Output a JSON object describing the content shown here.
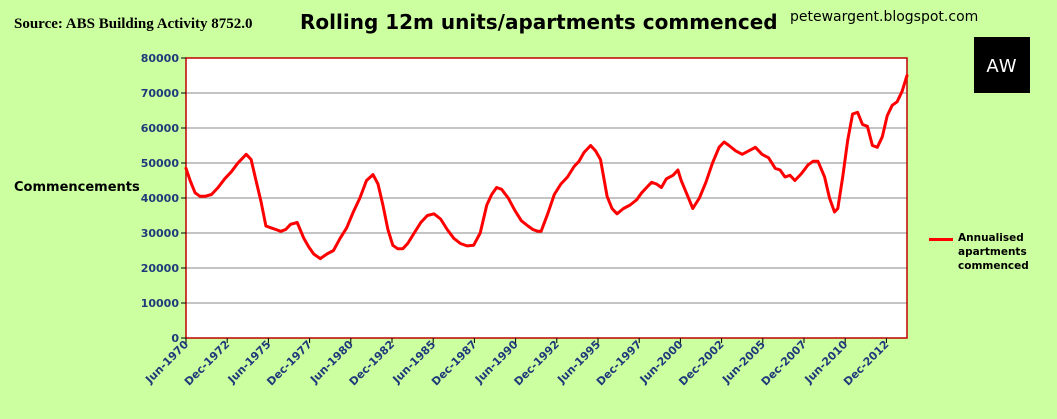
{
  "header": {
    "source": "Source: ABS Building Activity 8752.0",
    "title": "Rolling 12m units/apartments commenced",
    "blog": "petewargent.blogspot.com",
    "logo_text": "AW"
  },
  "colors": {
    "background": "#ccffa0",
    "plot_area": "#ffffff",
    "series": "#ff0000",
    "frame": "#c00000",
    "tick_text": "#1f3a7a"
  },
  "chart_data": {
    "type": "line",
    "title": "Rolling 12m units/apartments commenced",
    "ylabel": "Commencements",
    "xlabel": "",
    "ylim": [
      0,
      80000
    ],
    "y_ticks": [
      0,
      10000,
      20000,
      30000,
      40000,
      50000,
      60000,
      70000,
      80000
    ],
    "y_tick_labels": [
      "0",
      "10000",
      "20000",
      "30000",
      "40000",
      "50000",
      "60000",
      "70000",
      "80000"
    ],
    "x_tick_labels": [
      "Jun-1970",
      "Dec-1972",
      "Jun-1975",
      "Dec-1977",
      "Jun-1980",
      "Dec-1982",
      "Jun-1985",
      "Dec-1987",
      "Jun-1990",
      "Dec-1992",
      "Jun-1995",
      "Dec-1997",
      "Jun-2000",
      "Dec-2002",
      "Jun-2005",
      "Dec-2007",
      "Jun-2010",
      "Dec-2012"
    ],
    "x_ticks": [
      1970.45,
      1972.95,
      1975.45,
      1977.95,
      1980.45,
      1982.95,
      1985.45,
      1987.95,
      1990.45,
      1992.95,
      1995.45,
      1997.95,
      2000.45,
      2002.95,
      2005.45,
      2007.95,
      2010.45,
      2012.95
    ],
    "xlim": [
      1970.45,
      2014.2
    ],
    "grid": true,
    "legend_position": "right",
    "series": [
      {
        "name": "Annualised apartments commenced",
        "x": [
          1970.45,
          1970.7,
          1971.0,
          1971.3,
          1971.6,
          1972.0,
          1972.4,
          1972.8,
          1973.2,
          1973.6,
          1973.9,
          1974.1,
          1974.4,
          1974.7,
          1975.0,
          1975.3,
          1975.6,
          1975.9,
          1976.2,
          1976.5,
          1976.8,
          1977.2,
          1977.6,
          1977.9,
          1978.2,
          1978.6,
          1979.0,
          1979.4,
          1979.8,
          1980.2,
          1980.6,
          1981.0,
          1981.4,
          1981.8,
          1982.1,
          1982.4,
          1982.7,
          1983.0,
          1983.3,
          1983.6,
          1983.9,
          1984.3,
          1984.7,
          1985.1,
          1985.5,
          1985.9,
          1986.3,
          1986.7,
          1987.1,
          1987.5,
          1987.9,
          1988.3,
          1988.7,
          1989.0,
          1989.3,
          1989.6,
          1990.0,
          1990.4,
          1990.8,
          1991.2,
          1991.5,
          1991.8,
          1992.0,
          1992.4,
          1992.8,
          1993.2,
          1993.6,
          1994.0,
          1994.3,
          1994.6,
          1995.0,
          1995.3,
          1995.6,
          1996.0,
          1996.3,
          1996.6,
          1997.0,
          1997.4,
          1997.8,
          1998.1,
          1998.4,
          1998.7,
          1999.0,
          1999.3,
          1999.6,
          2000.0,
          2000.3,
          2000.5,
          2000.9,
          2001.2,
          2001.6,
          2002.0,
          2002.4,
          2002.8,
          2003.1,
          2003.4,
          2003.8,
          2004.2,
          2004.6,
          2005.0,
          2005.4,
          2005.8,
          2006.2,
          2006.5,
          2006.8,
          2007.1,
          2007.4,
          2007.8,
          2008.2,
          2008.5,
          2008.8,
          2009.2,
          2009.5,
          2009.8,
          2010.0,
          2010.3,
          2010.6,
          2010.9,
          2011.2,
          2011.5,
          2011.8,
          2012.1,
          2012.4,
          2012.7,
          2013.0,
          2013.3,
          2013.6,
          2013.9,
          2014.2
        ],
        "values": [
          48500,
          45000,
          41500,
          40500,
          40500,
          41000,
          43000,
          45500,
          47500,
          50000,
          51500,
          52500,
          51000,
          45000,
          39000,
          32000,
          31500,
          31000,
          30500,
          31000,
          32500,
          33000,
          28500,
          26000,
          24000,
          22700,
          24000,
          25000,
          28500,
          31500,
          36000,
          40000,
          45000,
          46700,
          44000,
          38000,
          31000,
          26500,
          25500,
          25500,
          27000,
          30000,
          33000,
          35000,
          35500,
          34000,
          31000,
          28500,
          27000,
          26300,
          26500,
          30000,
          38000,
          41000,
          43000,
          42500,
          40000,
          36500,
          33500,
          32000,
          31000,
          30500,
          30500,
          35500,
          41000,
          44000,
          46000,
          49000,
          50500,
          53000,
          55000,
          53500,
          51000,
          40500,
          37000,
          35500,
          37000,
          38000,
          39500,
          41500,
          43000,
          44500,
          44000,
          43000,
          45500,
          46500,
          48000,
          45000,
          40500,
          37000,
          40000,
          44500,
          50000,
          54500,
          56000,
          55000,
          53500,
          52500,
          53500,
          54500,
          52500,
          51500,
          48500,
          48000,
          46000,
          46500,
          45000,
          47000,
          49500,
          50500,
          50500,
          46000,
          40000,
          36000,
          37000,
          46000,
          56500,
          64000,
          64500,
          61000,
          60500,
          55000,
          54500,
          57500,
          63500,
          66500,
          67500,
          70500,
          75000
        ]
      }
    ]
  }
}
